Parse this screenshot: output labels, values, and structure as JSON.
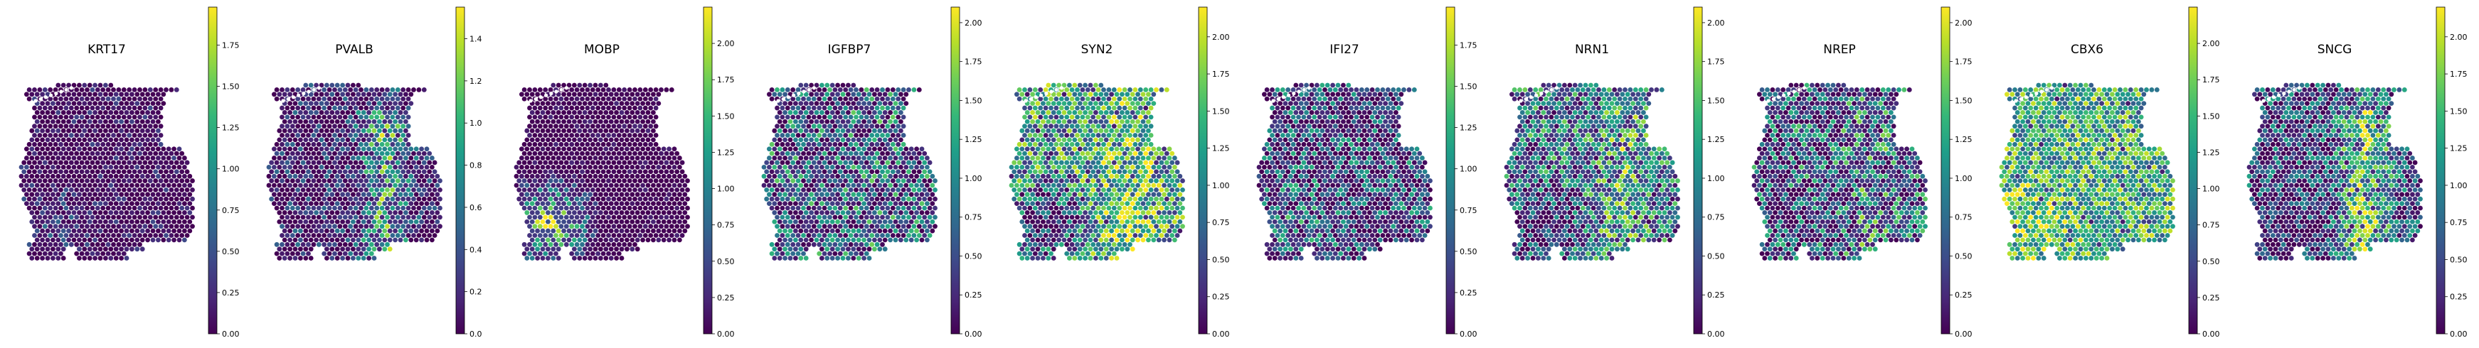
{
  "figure": {
    "colormap": "viridis",
    "colormap_stops": [
      "#440154",
      "#482878",
      "#3e4989",
      "#31688e",
      "#26828e",
      "#1f9e89",
      "#35b779",
      "#6ece58",
      "#b5de2b",
      "#fde725"
    ],
    "background": "#ffffff"
  },
  "chart_data": [
    {
      "type": "heatmap",
      "title": "KRT17",
      "colorbar": {
        "vmin": 0,
        "vmax": 1.98,
        "ticks": [
          "0.00",
          "0.25",
          "0.50",
          "0.75",
          "1.00",
          "1.25",
          "1.50",
          "1.75"
        ]
      },
      "pattern": "low expression overall with scattered moderate spots in the lower-left region",
      "regions": {
        "base": 0.05,
        "bottomLeft": 0.15,
        "rightBand": 0.02,
        "noise": 0.18,
        "sparsity": 0.85
      }
    },
    {
      "type": "heatmap",
      "title": "PVALB",
      "colorbar": {
        "vmin": 0,
        "vmax": 1.55,
        "ticks": [
          "0.0",
          "0.2",
          "0.4",
          "0.6",
          "0.8",
          "1.0",
          "1.2",
          "1.4"
        ]
      },
      "pattern": "high expression in a curved band on the right side of the section",
      "regions": {
        "base": 0.08,
        "bottomLeft": 0.0,
        "rightBand": 0.65,
        "noise": 0.3,
        "sparsity": 0.5
      }
    },
    {
      "type": "heatmap",
      "title": "MOBP",
      "colorbar": {
        "vmin": 0,
        "vmax": 2.25,
        "ticks": [
          "0.00",
          "0.25",
          "0.50",
          "0.75",
          "1.00",
          "1.25",
          "1.50",
          "1.75",
          "2.00"
        ]
      },
      "pattern": "very high expression confined to the bottom-left white-matter region",
      "regions": {
        "base": 0.02,
        "bottomLeft": 0.92,
        "rightBand": 0.0,
        "noise": 0.1,
        "sparsity": 0.9
      }
    },
    {
      "type": "heatmap",
      "title": "IGFBP7",
      "colorbar": {
        "vmin": 0,
        "vmax": 2.1,
        "ticks": [
          "0.00",
          "0.25",
          "0.50",
          "0.75",
          "1.00",
          "1.25",
          "1.50",
          "1.75",
          "2.00"
        ]
      },
      "pattern": "moderate speckled expression spread across the whole section",
      "regions": {
        "base": 0.3,
        "bottomLeft": 0.0,
        "rightBand": 0.05,
        "noise": 0.45,
        "sparsity": 0.35
      }
    },
    {
      "type": "heatmap",
      "title": "SYN2",
      "colorbar": {
        "vmin": 0,
        "vmax": 2.2,
        "ticks": [
          "0.00",
          "0.25",
          "0.50",
          "0.75",
          "1.00",
          "1.25",
          "1.50",
          "1.75",
          "2.00"
        ]
      },
      "pattern": "high expression in cortex, lower in bottom-left white matter",
      "regions": {
        "base": 0.55,
        "bottomLeft": -0.45,
        "rightBand": 0.2,
        "noise": 0.4,
        "sparsity": 0.15
      }
    },
    {
      "type": "heatmap",
      "title": "IFI27",
      "colorbar": {
        "vmin": 0,
        "vmax": 1.98,
        "ticks": [
          "0.00",
          "0.25",
          "0.50",
          "0.75",
          "1.00",
          "1.25",
          "1.50",
          "1.75"
        ]
      },
      "pattern": "moderate expression with higher values in upper and left areas",
      "regions": {
        "base": 0.25,
        "bottomLeft": 0.1,
        "rightBand": -0.05,
        "noise": 0.4,
        "sparsity": 0.4
      }
    },
    {
      "type": "heatmap",
      "title": "NRN1",
      "colorbar": {
        "vmin": 0,
        "vmax": 2.1,
        "ticks": [
          "0.00",
          "0.25",
          "0.50",
          "0.75",
          "1.00",
          "1.25",
          "1.50",
          "1.75",
          "2.00"
        ]
      },
      "pattern": "moderate to high cortical expression, low in bottom-left",
      "regions": {
        "base": 0.4,
        "bottomLeft": -0.3,
        "rightBand": 0.2,
        "noise": 0.4,
        "sparsity": 0.25
      }
    },
    {
      "type": "heatmap",
      "title": "NREP",
      "colorbar": {
        "vmin": 0,
        "vmax": 2.1,
        "ticks": [
          "0.00",
          "0.25",
          "0.50",
          "0.75",
          "1.00",
          "1.25",
          "1.50",
          "1.75",
          "2.00"
        ]
      },
      "pattern": "moderate speckled expression, slightly higher on the right",
      "regions": {
        "base": 0.3,
        "bottomLeft": -0.1,
        "rightBand": 0.15,
        "noise": 0.45,
        "sparsity": 0.35
      }
    },
    {
      "type": "heatmap",
      "title": "CBX6",
      "colorbar": {
        "vmin": 0,
        "vmax": 2.25,
        "ticks": [
          "0.00",
          "0.25",
          "0.50",
          "0.75",
          "1.00",
          "1.25",
          "1.50",
          "1.75",
          "2.00"
        ]
      },
      "pattern": "broadly high expression across the section, highest on the left",
      "regions": {
        "base": 0.6,
        "bottomLeft": 0.15,
        "rightBand": 0.0,
        "noise": 0.35,
        "sparsity": 0.05
      }
    },
    {
      "type": "heatmap",
      "title": "SNCG",
      "colorbar": {
        "vmin": 0,
        "vmax": 2.2,
        "ticks": [
          "0.00",
          "0.25",
          "0.50",
          "0.75",
          "1.00",
          "1.25",
          "1.50",
          "1.75",
          "2.00"
        ]
      },
      "pattern": "high expression in a right-side band, low in bottom-left",
      "regions": {
        "base": 0.25,
        "bottomLeft": -0.2,
        "rightBand": 0.55,
        "noise": 0.35,
        "sparsity": 0.25
      }
    }
  ]
}
